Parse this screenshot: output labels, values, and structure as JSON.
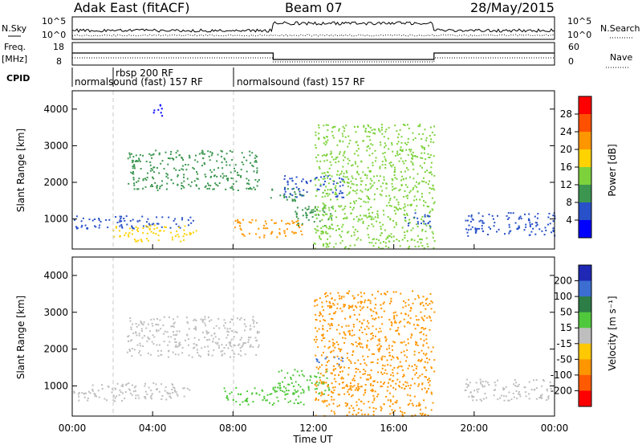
{
  "header": {
    "station": "Adak East (fitACF)",
    "beam": "Beam 07",
    "date": "28/May/2015"
  },
  "labels": {
    "nsky": "N.Sky",
    "nsearch": "N.Search",
    "freq_line1": "Freq.",
    "freq_line2": "[MHz]",
    "nave": "Nave",
    "cpid": "CPID"
  },
  "noise_axis": {
    "left_top": "10^5",
    "left_bottom": "10^0",
    "right_top": "10^5",
    "right_bottom": "10^0"
  },
  "freq_axis": {
    "left_ticks": [
      "18",
      "8"
    ],
    "right_ticks": [
      "60",
      "0"
    ]
  },
  "cpid_segments": [
    {
      "start_hour": 0.0,
      "label": "normalsound (fast) 157 RF"
    },
    {
      "start_hour": 2.0,
      "label": "rbsp 200 RF"
    },
    {
      "start_hour": 8.0,
      "label": "normalsound (fast) 157 RF"
    }
  ],
  "power_colorbar": {
    "label": "Power [dB]",
    "ticks": [
      "28",
      "24",
      "20",
      "16",
      "12",
      "8",
      "4"
    ],
    "colors": [
      "#ff0000",
      "#ff5000",
      "#ff9600",
      "#ffd200",
      "#7dd23c",
      "#3c9650",
      "#2850c8",
      "#0000ff"
    ]
  },
  "velocity_colorbar": {
    "label": "Velocity [m s⁻¹]",
    "ticks": [
      "200",
      "100",
      "50",
      "15",
      "-15",
      "-50",
      "-100",
      "-200"
    ],
    "colors": [
      "#1e28b4",
      "#3c6ed2",
      "#2d7d46",
      "#50c83c",
      "#bebebe",
      "#ffc800",
      "#ff9600",
      "#ff5a00",
      "#ff0000"
    ]
  },
  "chart_data": [
    {
      "type": "heatmap",
      "name": "Power",
      "ylabel": "Slant Range [km]",
      "xlabel": "",
      "xlim_hours": [
        0,
        24
      ],
      "ylim_km": [
        180,
        4500
      ],
      "y_ticks": [
        "1000",
        "2000",
        "3000",
        "4000"
      ],
      "value_unit": "dB",
      "regions": [
        {
          "t0": 0.0,
          "t1": 6.0,
          "r0": 750,
          "r1": 1100,
          "value": 6
        },
        {
          "t0": 2.0,
          "t1": 6.2,
          "r0": 400,
          "r1": 850,
          "value": 20
        },
        {
          "t0": 2.7,
          "t1": 9.3,
          "r0": 1800,
          "r1": 2900,
          "value": 10
        },
        {
          "t0": 4.0,
          "t1": 4.5,
          "r0": 3800,
          "r1": 4200,
          "value": 4
        },
        {
          "t0": 8.0,
          "t1": 11.5,
          "r0": 500,
          "r1": 1000,
          "value": 24
        },
        {
          "t0": 9.8,
          "t1": 11.5,
          "r0": 1500,
          "r1": 1900,
          "value": 12
        },
        {
          "t0": 10.5,
          "t1": 13.5,
          "r0": 1600,
          "r1": 2200,
          "value": 8
        },
        {
          "t0": 11.0,
          "t1": 13.0,
          "r0": 800,
          "r1": 1400,
          "value": 10
        },
        {
          "t0": 12.0,
          "t1": 18.0,
          "r0": 200,
          "r1": 3600,
          "value": 14
        },
        {
          "t0": 16.5,
          "t1": 17.8,
          "r0": 800,
          "r1": 1200,
          "value": 6
        },
        {
          "t0": 19.5,
          "t1": 24.0,
          "r0": 550,
          "r1": 1200,
          "value": 8
        }
      ]
    },
    {
      "type": "heatmap",
      "name": "Velocity",
      "ylabel": "Slant Range [km]",
      "xlabel": "Time UT",
      "xlim_hours": [
        0,
        24
      ],
      "ylim_km": [
        180,
        4500
      ],
      "y_ticks": [
        "1000",
        "2000",
        "3000",
        "4000"
      ],
      "x_ticks": [
        "00:00",
        "04:00",
        "08:00",
        "12:00",
        "16:00",
        "20:00",
        "00:00"
      ],
      "value_unit": "m s^-1",
      "regions": [
        {
          "t0": 0.0,
          "t1": 6.0,
          "r0": 600,
          "r1": 1100,
          "value": 0
        },
        {
          "t0": 2.7,
          "t1": 9.3,
          "r0": 1800,
          "r1": 2900,
          "value": 0
        },
        {
          "t0": 7.5,
          "t1": 11.5,
          "r0": 500,
          "r1": 1000,
          "value": 30
        },
        {
          "t0": 10.2,
          "t1": 12.8,
          "r0": 800,
          "r1": 1500,
          "value": 30
        },
        {
          "t0": 12.0,
          "t1": 13.5,
          "r0": 1600,
          "r1": 1800,
          "value": 150
        },
        {
          "t0": 12.0,
          "t1": 18.0,
          "r0": 200,
          "r1": 3600,
          "value": -80
        },
        {
          "t0": 19.5,
          "t1": 24.0,
          "r0": 600,
          "r1": 1200,
          "value": 0
        }
      ]
    }
  ]
}
